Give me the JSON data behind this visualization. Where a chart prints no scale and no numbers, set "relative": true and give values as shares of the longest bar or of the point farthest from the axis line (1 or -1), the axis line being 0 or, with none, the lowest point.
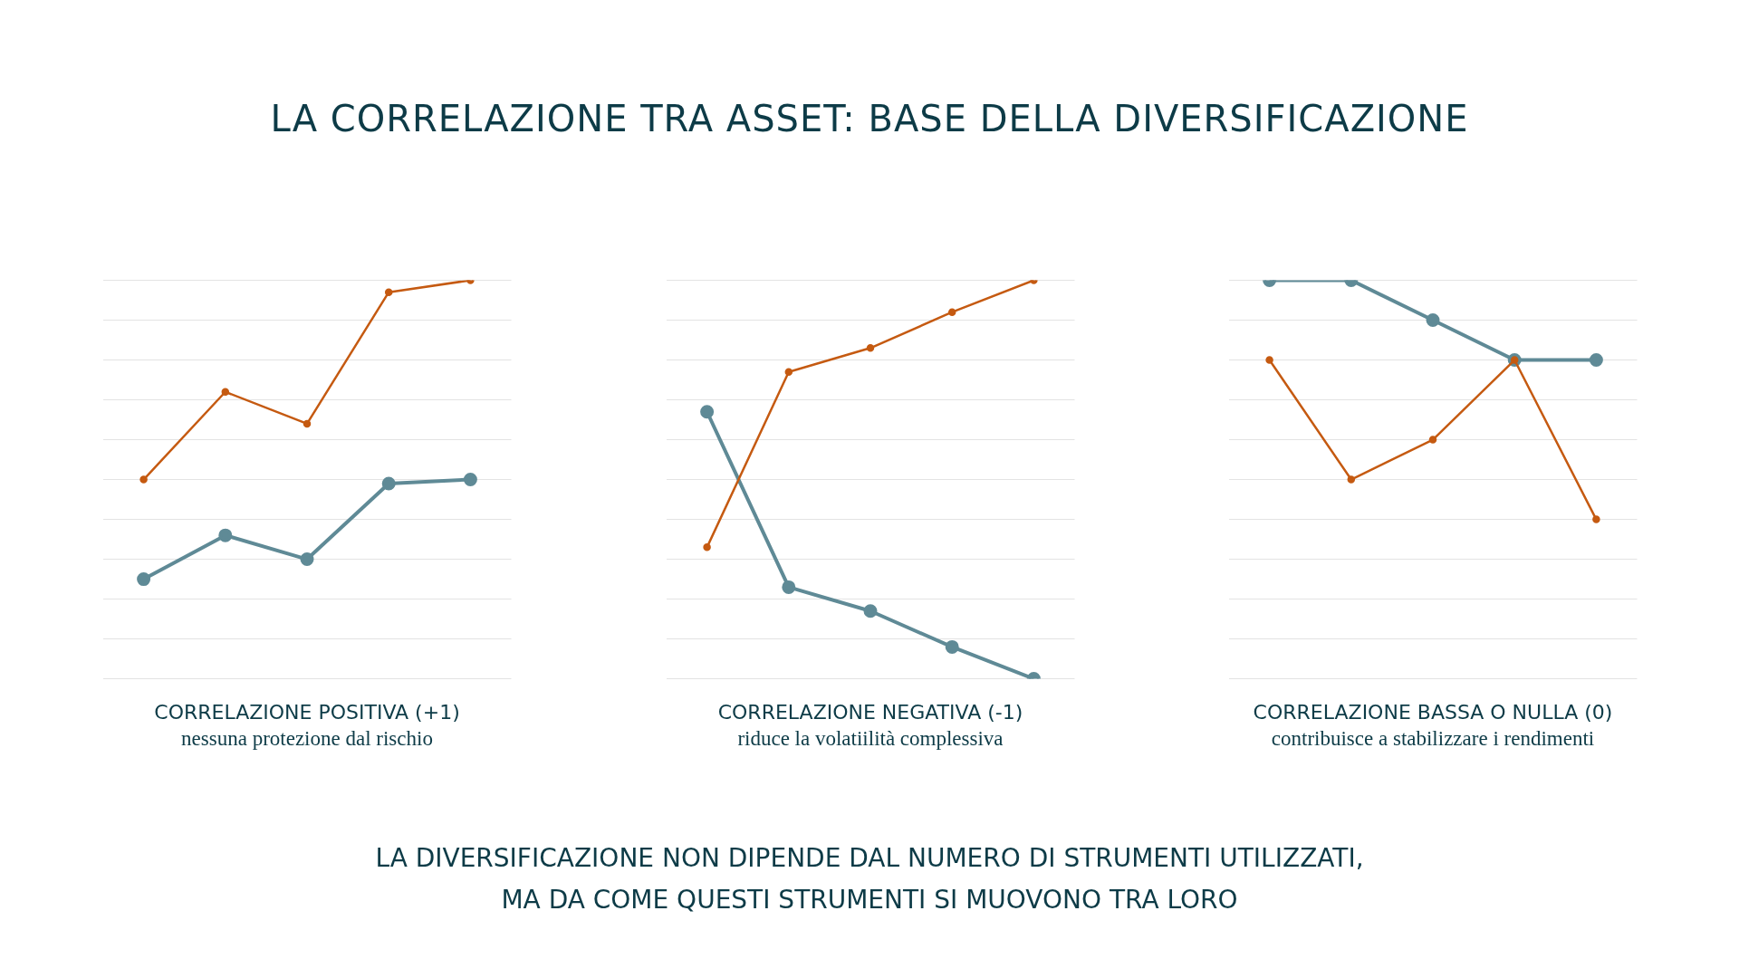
{
  "chart_data": [
    {
      "type": "other",
      "title": "LA CORRELAZIONE TRA ASSET: BASE DELLA DIVERSIFICAZIONE"
    },
    {
      "type": "line",
      "title": "CORRELAZIONE POSITIVA (+1)",
      "subtitle": "nessuna protezione dal rischio",
      "relative": true,
      "grid": "y",
      "marker": "circle",
      "categories": [
        null,
        null,
        null,
        null,
        null
      ],
      "series": [
        {
          "color": "#c55a11",
          "values": [
            0.5,
            0.72,
            0.64,
            0.97,
            1
          ]
        },
        {
          "color": "#5f8a96",
          "values": [
            0.25,
            0.36,
            0.3,
            0.49,
            0.5
          ]
        }
      ]
    },
    {
      "type": "line",
      "title": "CORRELAZIONE NEGATIVA (-1)",
      "subtitle": "riduce la volatiilità complessiva",
      "relative": true,
      "grid": "y",
      "marker": "circle",
      "categories": [
        null,
        null,
        null,
        null,
        null
      ],
      "series": [
        {
          "color": "#c55a11",
          "values": [
            0.33,
            0.77,
            0.83,
            0.92,
            1
          ]
        },
        {
          "color": "#5f8a96",
          "values": [
            0.67,
            0.23,
            0.17,
            0.08,
            0
          ]
        }
      ]
    },
    {
      "type": "line",
      "title": "CORRELAZIONE BASSA O NULLA (0)",
      "subtitle": "contribuisce a stabilizzare i rendimenti",
      "relative": true,
      "grid": "y",
      "marker": "circle",
      "categories": [
        null,
        null,
        null,
        null,
        null
      ],
      "series": [
        {
          "color": "#c55a11",
          "values": [
            0.8,
            0.5,
            0.6,
            0.8,
            0.4
          ]
        },
        {
          "color": "#5f8a96",
          "values": [
            1,
            1,
            0.9,
            0.8,
            0.8
          ]
        }
      ]
    },
    {
      "type": "other",
      "annotations": [
        "LA DIVERSIFICAZIONE NON DIPENDE DAL NUMERO DI STRUMENTI UTILIZZATI,\nMA DA COME QUESTI STRUMENTI SI MUOVONO TRA LORO"
      ]
    }
  ]
}
